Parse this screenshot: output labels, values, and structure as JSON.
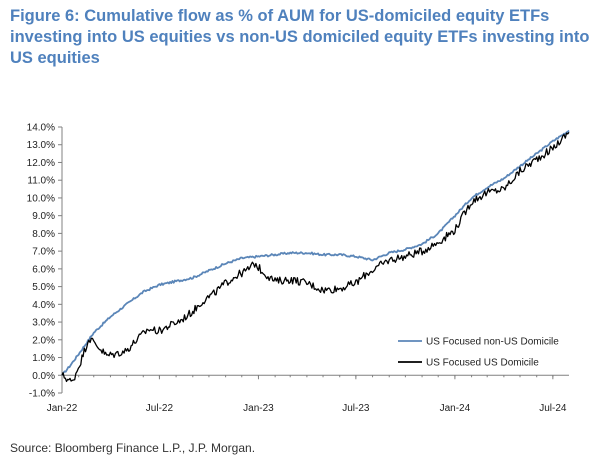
{
  "header": {
    "title": "Figure 6: Cumulative flow as % of AUM for US-domiciled equity ETFs investing into US equities vs non-US domiciled equity ETFs investing into US equities"
  },
  "footer": {
    "source": "Source: Bloomberg Finance L.P., J.P. Morgan."
  },
  "chart_data": {
    "type": "line",
    "title": "Figure 6: Cumulative flow as % of AUM for US-domiciled equity ETFs investing into US equities vs non-US domiciled equity ETFs investing into US equities",
    "xlabel": "",
    "ylabel": "",
    "x_ticks": [
      "Jan-22",
      "Jul-22",
      "Jan-23",
      "Jul-23",
      "Jan-24",
      "Jul-24"
    ],
    "x_range": [
      "2022-01-01",
      "2024-07-31"
    ],
    "y_ticks": [
      "-1.0%",
      "0.0%",
      "1.0%",
      "2.0%",
      "3.0%",
      "4.0%",
      "5.0%",
      "6.0%",
      "7.0%",
      "8.0%",
      "9.0%",
      "10.0%",
      "11.0%",
      "12.0%",
      "13.0%",
      "14.0%"
    ],
    "ylim": [
      -1,
      14
    ],
    "y_unit": "%",
    "grid": false,
    "legend_position": "bottom-right",
    "series": [
      {
        "name": "US Focused non-US Domicile",
        "color": "#5b86b8",
        "x": [
          "2022-01-01",
          "2022-01-15",
          "2022-02-01",
          "2022-03-01",
          "2022-04-01",
          "2022-05-01",
          "2022-06-01",
          "2022-07-01",
          "2022-08-01",
          "2022-09-01",
          "2022-10-01",
          "2022-11-01",
          "2022-12-01",
          "2023-01-01",
          "2023-02-01",
          "2023-03-01",
          "2023-04-01",
          "2023-05-01",
          "2023-06-01",
          "2023-07-01",
          "2023-08-01",
          "2023-09-01",
          "2023-10-01",
          "2023-11-01",
          "2023-12-01",
          "2024-01-01",
          "2024-02-01",
          "2024-03-01",
          "2024-04-01",
          "2024-05-01",
          "2024-06-01",
          "2024-07-01",
          "2024-07-31"
        ],
        "values": [
          0.0,
          0.5,
          1.2,
          2.4,
          3.3,
          4.0,
          4.7,
          5.1,
          5.3,
          5.5,
          5.9,
          6.3,
          6.6,
          6.7,
          6.8,
          6.9,
          6.9,
          6.8,
          6.8,
          6.7,
          6.5,
          6.9,
          7.1,
          7.4,
          8.0,
          9.0,
          10.0,
          10.6,
          11.1,
          11.8,
          12.5,
          13.2,
          13.8
        ]
      },
      {
        "name": "US Focused US Domicile",
        "color": "#000000",
        "x": [
          "2022-01-01",
          "2022-01-20",
          "2022-02-05",
          "2022-02-20",
          "2022-03-10",
          "2022-03-25",
          "2022-04-10",
          "2022-05-01",
          "2022-05-20",
          "2022-06-10",
          "2022-07-01",
          "2022-07-20",
          "2022-08-10",
          "2022-09-01",
          "2022-09-20",
          "2022-10-10",
          "2022-11-01",
          "2022-11-20",
          "2022-12-10",
          "2022-12-25",
          "2023-01-10",
          "2023-02-01",
          "2023-03-01",
          "2023-04-01",
          "2023-05-01",
          "2023-06-01",
          "2023-07-01",
          "2023-07-20",
          "2023-08-10",
          "2023-09-01",
          "2023-10-01",
          "2023-11-01",
          "2023-12-01",
          "2024-01-01",
          "2024-02-01",
          "2024-03-01",
          "2024-04-01",
          "2024-05-01",
          "2024-06-01",
          "2024-07-01",
          "2024-07-31"
        ],
        "values": [
          0.0,
          -0.4,
          0.8,
          2.1,
          1.6,
          1.1,
          1.2,
          1.4,
          2.0,
          2.6,
          2.5,
          2.8,
          3.1,
          3.6,
          4.2,
          4.6,
          5.2,
          5.6,
          5.9,
          6.3,
          5.8,
          5.3,
          5.4,
          5.2,
          4.8,
          4.9,
          5.2,
          5.7,
          6.1,
          6.5,
          6.7,
          7.0,
          7.5,
          8.2,
          9.8,
          10.3,
          10.5,
          11.5,
          12.2,
          12.8,
          13.7
        ]
      }
    ]
  }
}
